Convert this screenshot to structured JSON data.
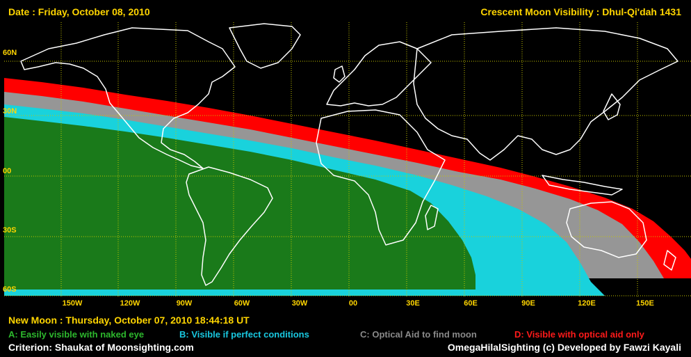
{
  "header": {
    "date": "Date : Friday, October 08, 2010",
    "title": "Crescent Moon Visibility : Dhul-Qi'dah  1431"
  },
  "latitude_labels": [
    "60N",
    "30N",
    "00",
    "30S",
    "60S"
  ],
  "longitude_labels": [
    "150W",
    "120W",
    "90W",
    "60W",
    "30W",
    "00",
    "30E",
    "60E",
    "90E",
    "120E",
    "150E"
  ],
  "new_moon": "New Moon : Thursday, October 07, 2010  18:44:18  UT",
  "legend": {
    "a": {
      "label": "A: Easily visible with naked eye",
      "color": "#2db82d"
    },
    "b": {
      "label": "B: Visible if perfect conditions",
      "color": "#19c8e0"
    },
    "c": {
      "label": "C: Optical Aid to find moon",
      "color": "#8a8a8a"
    },
    "d": {
      "label": "D: Visible with optical aid only",
      "color": "#ff1a1a"
    }
  },
  "zone_colors": {
    "a": "#1a7a1a",
    "b": "#19d2dc",
    "c": "#969696",
    "d": "#ff0000"
  },
  "footer": {
    "criterion": "Criterion: Shaukat of Moonsighting.com",
    "credit": "OmegaHilalSighting  (c)  Developed by Fawzi Kayali"
  }
}
